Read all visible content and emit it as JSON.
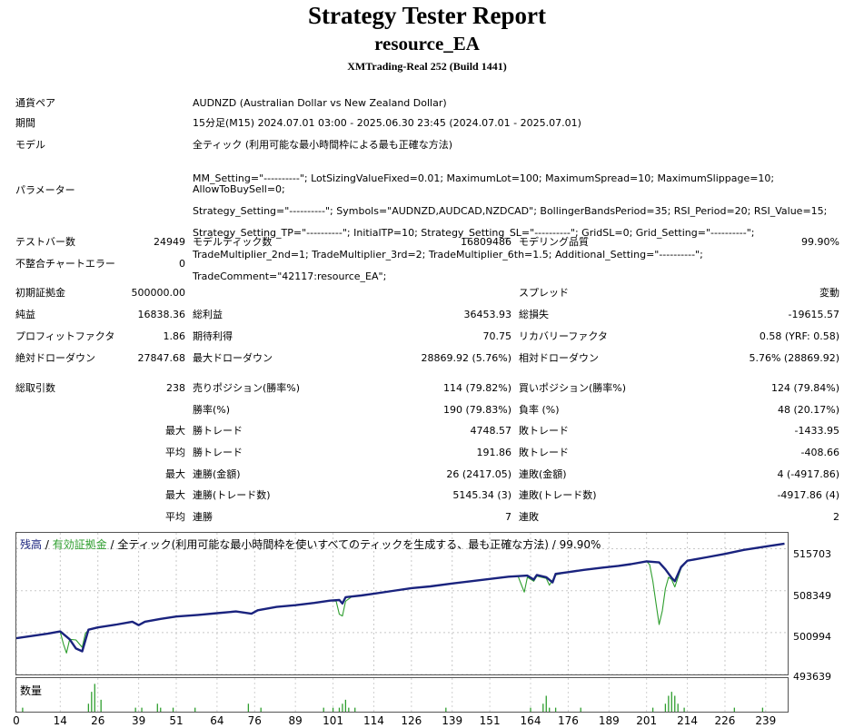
{
  "header": {
    "title": "Strategy Tester Report",
    "ea_name": "resource_EA",
    "server": "XMTrading-Real 252 (Build 1441)"
  },
  "settings": {
    "pair_label": "通貨ペア",
    "pair_value": "AUDNZD (Australian Dollar vs New Zealand Dollar)",
    "period_label": "期間",
    "period_value": "15分足(M15) 2024.07.01 03:00 - 2025.06.30 23:45 (2024.07.01 - 2025.07.01)",
    "model_label": "モデル",
    "model_value": "全ティック (利用可能な最小時間枠による最も正確な方法)",
    "params_label": "パラメーター",
    "params_lines": [
      "MM_Setting=\"----------\"; LotSizingValueFixed=0.01; MaximumLot=100; MaximumSpread=10; MaximumSlippage=10; AllowToBuySell=0;",
      "Strategy_Setting=\"----------\"; Symbols=\"AUDNZD,AUDCAD,NZDCAD\"; BollingerBandsPeriod=35; RSI_Period=20; RSI_Value=15;",
      "Strategy_Setting_TP=\"----------\"; InitialTP=10; Strategy_Setting_SL=\"----------\"; GridSL=0; Grid_Setting=\"----------\";",
      "TradeMultiplier_2nd=1; TradeMultiplier_3rd=2; TradeMultiplier_6th=1.5; Additional_Setting=\"----------\";",
      "TradeComment=\"42117:resource_EA\";"
    ]
  },
  "stats": {
    "bars_label": "テストバー数",
    "bars_value": "24949",
    "ticks_label": "モデルティック数",
    "ticks_value": "16809486",
    "quality_label": "モデリング品質",
    "quality_value": "99.90%",
    "mismatch_label": "不整合チャートエラー",
    "mismatch_value": "0",
    "deposit_label": "初期証拠金",
    "deposit_value": "500000.00",
    "spread_label": "スプレッド",
    "spread_value": "変動",
    "net_label": "純益",
    "net_value": "16838.36",
    "gross_profit_label": "総利益",
    "gross_profit_value": "36453.93",
    "gross_loss_label": "総損失",
    "gross_loss_value": "-19615.57",
    "pf_label": "プロフィットファクタ",
    "pf_value": "1.86",
    "expected_label": "期待利得",
    "expected_value": "70.75",
    "recovery_label": "リカバリーファクタ",
    "recovery_value": "0.58 (YRF: 0.58)",
    "abs_dd_label": "絶対ドローダウン",
    "abs_dd_value": "27847.68",
    "max_dd_label": "最大ドローダウン",
    "max_dd_value": "28869.92 (5.76%)",
    "rel_dd_label": "相対ドローダウン",
    "rel_dd_value": "5.76% (28869.92)",
    "total_label": "総取引数",
    "total_value": "238",
    "short_label": "売りポジション(勝率%)",
    "short_value": "114 (79.82%)",
    "long_label": "買いポジション(勝率%)",
    "long_value": "124 (79.84%)",
    "win_rate_label": "勝率(%)",
    "win_rate_value": "190 (79.83%)",
    "loss_rate_label": "負率 (%)",
    "loss_rate_value": "48 (20.17%)",
    "max_label": "最大",
    "avg_label": "平均",
    "largest_win_label": "勝トレード",
    "largest_win_value": "4748.57",
    "largest_loss_label": "敗トレード",
    "largest_loss_value": "-1433.95",
    "avg_win_label": "勝トレード",
    "avg_win_value": "191.86",
    "avg_loss_label": "敗トレード",
    "avg_loss_value": "-408.66",
    "max_consec_wins_amt_label": "連勝(金額)",
    "max_consec_wins_amt_value": "26 (2417.05)",
    "max_consec_losses_amt_label": "連敗(金額)",
    "max_consec_losses_amt_value": "4 (-4917.86)",
    "max_consec_wins_cnt_label": "連勝(トレード数)",
    "max_consec_wins_cnt_value": "5145.34 (3)",
    "max_consec_losses_cnt_label": "連敗(トレード数)",
    "max_consec_losses_cnt_value": "-4917.86 (4)",
    "avg_consec_wins_label": "連勝",
    "avg_consec_wins_value": "7",
    "avg_consec_losses_label": "連敗",
    "avg_consec_losses_value": "2"
  },
  "chart": {
    "legend_balance": "残高",
    "legend_sep1": " / ",
    "legend_equity": "有効証拠金",
    "legend_rest": " / 全ティック(利用可能な最小時間枠を使いすべてのティックを生成する、最も正確な方法) / 99.90%",
    "volume_label": "数量",
    "balance_color": "#1a237e",
    "equity_color": "#2e9e2e",
    "volume_color": "#2e9e2e"
  },
  "chart_data": {
    "type": "line",
    "xlim": [
      0,
      246
    ],
    "ylim": [
      493639,
      518500
    ],
    "yticks": [
      "515703",
      "508349",
      "500994",
      "493639"
    ],
    "xticks": [
      "0",
      "14",
      "26",
      "39",
      "51",
      "64",
      "76",
      "89",
      "101",
      "114",
      "126",
      "139",
      "151",
      "164",
      "176",
      "189",
      "201",
      "214",
      "226",
      "239"
    ],
    "series": [
      {
        "name": "残高",
        "points": [
          [
            0,
            500000
          ],
          [
            5,
            500400
          ],
          [
            10,
            500800
          ],
          [
            14,
            501200
          ],
          [
            17,
            499800
          ],
          [
            19,
            498200
          ],
          [
            21,
            497700
          ],
          [
            23,
            501500
          ],
          [
            26,
            501900
          ],
          [
            32,
            502400
          ],
          [
            37,
            502900
          ],
          [
            39,
            502300
          ],
          [
            41,
            502900
          ],
          [
            46,
            503400
          ],
          [
            51,
            503800
          ],
          [
            58,
            504100
          ],
          [
            64,
            504400
          ],
          [
            70,
            504700
          ],
          [
            75,
            504300
          ],
          [
            77,
            504900
          ],
          [
            83,
            505500
          ],
          [
            89,
            505800
          ],
          [
            95,
            506200
          ],
          [
            100,
            506600
          ],
          [
            103,
            506700
          ],
          [
            104,
            506100
          ],
          [
            105,
            507200
          ],
          [
            110,
            507500
          ],
          [
            114,
            507800
          ],
          [
            120,
            508300
          ],
          [
            126,
            508800
          ],
          [
            132,
            509100
          ],
          [
            139,
            509600
          ],
          [
            145,
            510000
          ],
          [
            151,
            510400
          ],
          [
            157,
            510800
          ],
          [
            163,
            511000
          ],
          [
            165,
            510300
          ],
          [
            166,
            511100
          ],
          [
            169,
            510700
          ],
          [
            171,
            509800
          ],
          [
            172,
            511300
          ],
          [
            176,
            511600
          ],
          [
            181,
            512000
          ],
          [
            187,
            512400
          ],
          [
            192,
            512700
          ],
          [
            196,
            513000
          ],
          [
            201,
            513500
          ],
          [
            205,
            513300
          ],
          [
            207,
            512100
          ],
          [
            209,
            510600
          ],
          [
            210,
            510000
          ],
          [
            212,
            512500
          ],
          [
            214,
            513600
          ],
          [
            220,
            514200
          ],
          [
            226,
            514800
          ],
          [
            232,
            515500
          ],
          [
            239,
            516100
          ],
          [
            245,
            516600
          ]
        ]
      },
      {
        "name": "有効証拠金",
        "points": [
          [
            0,
            500000
          ],
          [
            5,
            500400
          ],
          [
            10,
            500800
          ],
          [
            14,
            501100
          ],
          [
            15,
            499000
          ],
          [
            16,
            497400
          ],
          [
            17,
            499800
          ],
          [
            19,
            499700
          ],
          [
            21,
            498400
          ],
          [
            22,
            500800
          ],
          [
            23,
            501500
          ],
          [
            26,
            501900
          ],
          [
            32,
            502400
          ],
          [
            37,
            502900
          ],
          [
            39,
            502300
          ],
          [
            41,
            502900
          ],
          [
            46,
            503400
          ],
          [
            51,
            503800
          ],
          [
            58,
            504100
          ],
          [
            64,
            504400
          ],
          [
            70,
            504700
          ],
          [
            75,
            504300
          ],
          [
            77,
            504900
          ],
          [
            83,
            505500
          ],
          [
            89,
            505800
          ],
          [
            95,
            506200
          ],
          [
            100,
            506600
          ],
          [
            102,
            506500
          ],
          [
            103,
            504200
          ],
          [
            104,
            503900
          ],
          [
            105,
            506500
          ],
          [
            107,
            507300
          ],
          [
            110,
            507500
          ],
          [
            114,
            507800
          ],
          [
            120,
            508300
          ],
          [
            126,
            508800
          ],
          [
            132,
            509100
          ],
          [
            139,
            509600
          ],
          [
            145,
            510000
          ],
          [
            151,
            510400
          ],
          [
            157,
            510800
          ],
          [
            160,
            510900
          ],
          [
            161,
            509500
          ],
          [
            162,
            508100
          ],
          [
            163,
            510700
          ],
          [
            165,
            510000
          ],
          [
            166,
            510900
          ],
          [
            169,
            510500
          ],
          [
            170,
            509300
          ],
          [
            172,
            511100
          ],
          [
            176,
            511600
          ],
          [
            181,
            512000
          ],
          [
            187,
            512400
          ],
          [
            192,
            512700
          ],
          [
            196,
            513000
          ],
          [
            201,
            513500
          ],
          [
            202,
            512900
          ],
          [
            203,
            510000
          ],
          [
            204,
            506200
          ],
          [
            205,
            502400
          ],
          [
            206,
            504800
          ],
          [
            207,
            508700
          ],
          [
            208,
            510700
          ],
          [
            209,
            510300
          ],
          [
            210,
            509000
          ],
          [
            212,
            512300
          ],
          [
            214,
            513600
          ],
          [
            220,
            514200
          ],
          [
            226,
            514800
          ],
          [
            232,
            515500
          ],
          [
            239,
            516100
          ],
          [
            245,
            516600
          ]
        ]
      }
    ],
    "volume": [
      [
        2,
        1
      ],
      [
        23,
        2
      ],
      [
        24,
        5
      ],
      [
        25,
        7
      ],
      [
        27,
        3
      ],
      [
        38,
        1
      ],
      [
        40,
        1
      ],
      [
        45,
        2
      ],
      [
        46,
        1
      ],
      [
        50,
        1
      ],
      [
        57,
        1
      ],
      [
        74,
        2
      ],
      [
        78,
        1
      ],
      [
        98,
        1
      ],
      [
        101,
        1
      ],
      [
        103,
        1
      ],
      [
        104,
        2
      ],
      [
        105,
        3
      ],
      [
        106,
        1
      ],
      [
        108,
        1
      ],
      [
        137,
        1
      ],
      [
        164,
        1
      ],
      [
        168,
        2
      ],
      [
        169,
        4
      ],
      [
        170,
        1
      ],
      [
        172,
        1
      ],
      [
        180,
        1
      ],
      [
        203,
        1
      ],
      [
        207,
        2
      ],
      [
        208,
        4
      ],
      [
        209,
        5
      ],
      [
        210,
        4
      ],
      [
        211,
        2
      ],
      [
        213,
        1
      ],
      [
        229,
        1
      ],
      [
        238,
        1
      ]
    ]
  }
}
